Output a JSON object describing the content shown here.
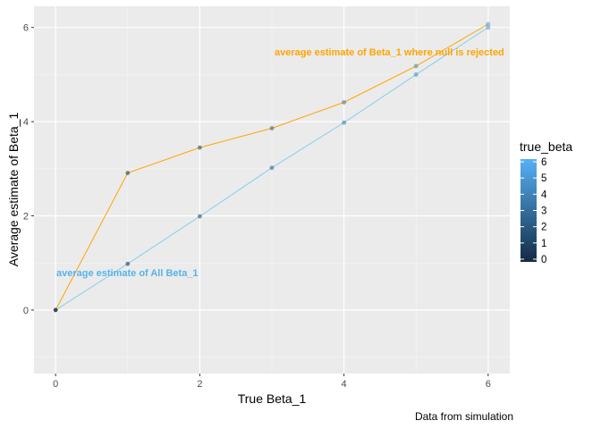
{
  "chart_data": {
    "type": "line",
    "title": "",
    "xlabel": "True Beta_1",
    "ylabel": "Average estimate of Beta_1",
    "caption": "Data from simulation",
    "xlim": [
      -0.3,
      6.3
    ],
    "ylim": [
      -1.35,
      6.45
    ],
    "x_ticks": [
      0,
      2,
      4,
      6
    ],
    "y_ticks": [
      0,
      2,
      4,
      6
    ],
    "grid": true,
    "series": [
      {
        "key": "all",
        "color": "#87CEEB",
        "x": [
          0,
          1,
          2,
          3,
          4,
          5,
          6
        ],
        "y": [
          0.0,
          0.98,
          1.99,
          3.02,
          3.98,
          5.0,
          6.0
        ]
      },
      {
        "key": "rejected",
        "color": "#FFA500",
        "x": [
          0,
          1,
          2,
          3,
          4,
          5,
          6
        ],
        "y": [
          0.0,
          2.91,
          3.45,
          3.86,
          4.41,
          5.18,
          6.07
        ]
      }
    ],
    "annotations": [
      {
        "text": "average estimate of All Beta_1",
        "color": "#56B4E9"
      },
      {
        "text": "average estimate of Beta_1 where null is rejected",
        "color": "#FFA500"
      }
    ],
    "legend": {
      "title": "true_beta",
      "placement": "right",
      "labels": [
        "6",
        "5",
        "4",
        "3",
        "2",
        "1",
        "0"
      ],
      "low_color": "#132B43",
      "high_color": "#56B1F7"
    }
  }
}
